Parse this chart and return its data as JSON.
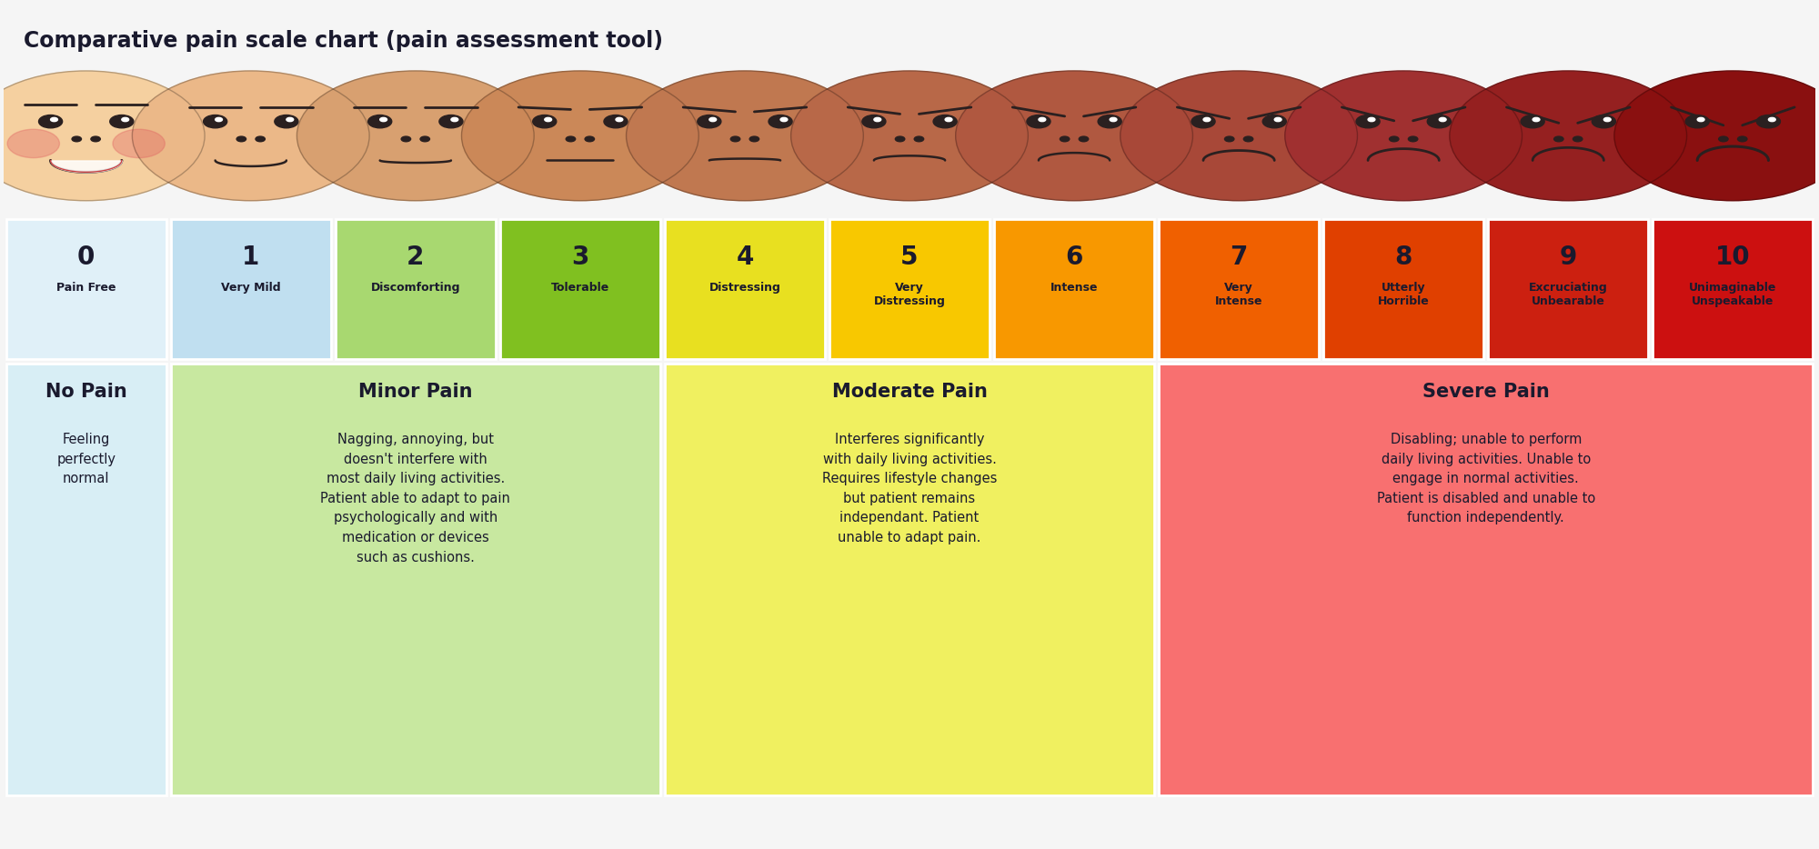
{
  "title": "Comparative pain scale chart (pain assessment tool)",
  "title_fontsize": 17,
  "title_color": "#1a1a2e",
  "bg_color": "#f5f5f5",
  "pain_levels": [
    {
      "num": "0",
      "label": "Pain Free",
      "color": "#e0f0f8"
    },
    {
      "num": "1",
      "label": "Very Mild",
      "color": "#c0dff0"
    },
    {
      "num": "2",
      "label": "Discomforting",
      "color": "#a8d870"
    },
    {
      "num": "3",
      "label": "Tolerable",
      "color": "#80c020"
    },
    {
      "num": "4",
      "label": "Distressing",
      "color": "#e8e020"
    },
    {
      "num": "5",
      "label": "Very\nDistressing",
      "color": "#f8c800"
    },
    {
      "num": "6",
      "label": "Intense",
      "color": "#f89800"
    },
    {
      "num": "7",
      "label": "Very\nIntense",
      "color": "#f06000"
    },
    {
      "num": "8",
      "label": "Utterly\nHorrible",
      "color": "#e04000"
    },
    {
      "num": "9",
      "label": "Excruciating\nUnbearable",
      "color": "#cc2010"
    },
    {
      "num": "10",
      "label": "Unimaginable\nUnspeakable",
      "color": "#cc1010"
    }
  ],
  "categories": [
    {
      "name": "No Pain",
      "description": "Feeling\nperfectly\nnormal",
      "bg_color": "#d8eef5",
      "span": [
        0,
        1
      ],
      "text_color": "#1a1a2e"
    },
    {
      "name": "Minor Pain",
      "description": "Nagging, annoying, but\ndoesn't interfere with\nmost daily living activities.\nPatient able to adapt to pain\npsychologically and with\nmedication or devices\nsuch as cushions.",
      "bg_color": "#c8e8a0",
      "span": [
        1,
        4
      ],
      "text_color": "#1a1a2e"
    },
    {
      "name": "Moderate Pain",
      "description": "Interferes significantly\nwith daily living activities.\nRequires lifestyle changes\nbut patient remains\nindependant. Patient\nunable to adapt pain.",
      "bg_color": "#f0f060",
      "span": [
        4,
        7
      ],
      "text_color": "#1a1a2e"
    },
    {
      "name": "Severe Pain",
      "description": "Disabling; unable to perform\ndaily living activities. Unable to\nengage in normal activities.\nPatient is disabled and unable to\nfunction independently.",
      "bg_color": "#f87070",
      "span": [
        7,
        11
      ],
      "text_color": "#1a1a2e"
    }
  ],
  "face_colors": [
    "#f5d0a0",
    "#ebb888",
    "#d8a070",
    "#cb8858",
    "#c07850",
    "#b86848",
    "#b05840",
    "#a84838",
    "#a03030",
    "#952020",
    "#8a1010"
  ],
  "num_fontsize": 20,
  "label_fontsize": 9,
  "cat_name_fontsize": 15,
  "cat_desc_fontsize": 10.5
}
